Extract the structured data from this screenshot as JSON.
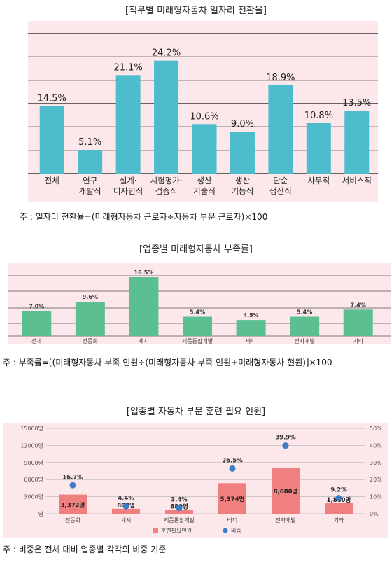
{
  "chart_data": [
    {
      "type": "bar",
      "title": "[직무별 미래형자동차 일자리 전환율]",
      "categories": [
        "전체",
        "연구\n개발직",
        "설계·\n디자인직",
        "시험평가·\n검증직",
        "생산\n기술직",
        "생산\n기능직",
        "단순\n생산직",
        "사무직",
        "서비스직"
      ],
      "values": [
        14.5,
        5.1,
        21.1,
        24.2,
        10.6,
        9.0,
        18.9,
        10.8,
        13.5
      ],
      "value_labels": [
        "14.5%",
        "5.1%",
        "21.1%",
        "24.2%",
        "10.6%",
        "9.0%",
        "18.9%",
        "10.8%",
        "13.5%"
      ],
      "ylim": [
        0,
        30
      ],
      "grid": true,
      "colors": {
        "bar": "#4dbccd",
        "background": "#fce8ea"
      },
      "note": "주 : 일자리 전환율=(미래형자동차 근로자÷자동차 부문 근로자)×100"
    },
    {
      "type": "bar",
      "title": "[업종별 미래형자동차 부족률]",
      "categories": [
        "전체",
        "전동화",
        "섀시",
        "제품통합개발",
        "바디",
        "전자개발",
        "기타"
      ],
      "values": [
        7.0,
        9.6,
        16.5,
        5.4,
        4.5,
        5.4,
        7.4
      ],
      "value_labels": [
        "7.0%",
        "9.6%",
        "16.5%",
        "5.4%",
        "4.5%",
        "5.4%",
        "7.4%"
      ],
      "ylim": [
        0,
        18
      ],
      "grid": true,
      "colors": {
        "bar": "#5bbf92",
        "background": "#fce8ea"
      },
      "note": "주 : 부족률=[(미래형자동차 부족 인원÷(미래형자동차 부족 인원+미래형자동차 현원)]×100"
    },
    {
      "type": "bar",
      "title": "[업종별 자동차 부문 훈련 필요 인원]",
      "categories": [
        "전동화",
        "섀시",
        "제품통합개발",
        "바디",
        "전자개발",
        "기타"
      ],
      "series": [
        {
          "name": "훈련필요인원",
          "values": [
            3372,
            882,
            680,
            5374,
            8080,
            1860
          ],
          "labels": [
            "3,372명",
            "882명",
            "680명",
            "5,374명",
            "8,080명",
            "1,860명"
          ]
        },
        {
          "name": "비중",
          "values": [
            16.7,
            4.4,
            3.4,
            26.5,
            39.9,
            9.2
          ],
          "labels": [
            "16.7%",
            "4.4%",
            "3.4%",
            "26.5%",
            "39.9%",
            "9.2%"
          ]
        }
      ],
      "y_ticks": [
        "15000명",
        "12000명",
        "9000명",
        "6000명",
        "3000명",
        "명"
      ],
      "y2_ticks": [
        "50%",
        "40%",
        "30%",
        "20%",
        "10%",
        "0%"
      ],
      "ylim": [
        0,
        15000
      ],
      "y2lim": [
        0,
        50
      ],
      "grid": true,
      "legend": "bottom",
      "colors": {
        "bar": "#f08080",
        "dot": "#3d7cc9",
        "background": "#fce8ea"
      },
      "note": "주 : 비중은 전체 대비 업종별 각각의 비중 기준"
    }
  ]
}
